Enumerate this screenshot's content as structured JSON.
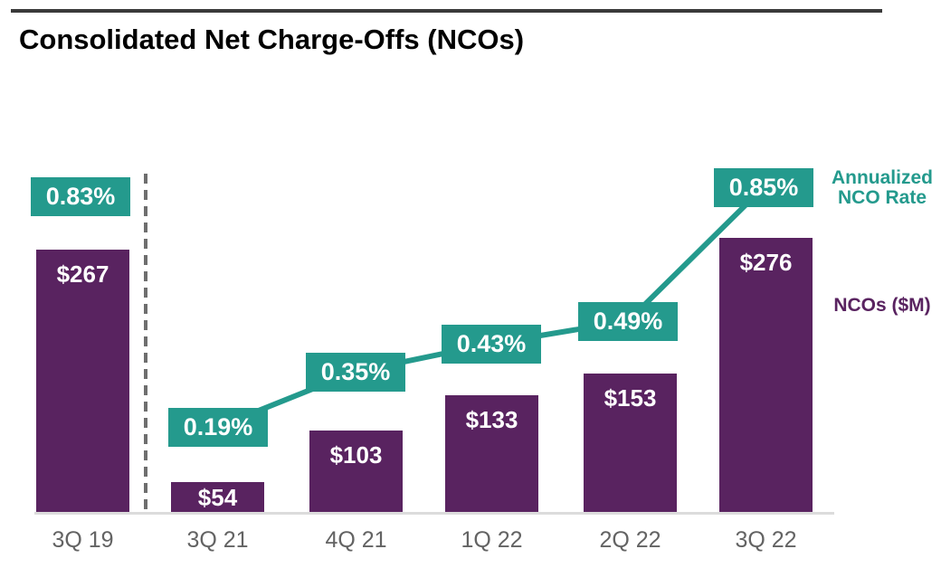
{
  "page": {
    "title": "Consolidated Net Charge-Offs (NCOs)"
  },
  "legend": {
    "rate_line1": "Annualized",
    "rate_line2": "NCO Rate",
    "nco_label": "NCOs ($M)"
  },
  "colors": {
    "bar_purple": "#592360",
    "rate_teal": "#249a8d",
    "axis_label_gray": "#636363",
    "baseline_gray": "#dcdcdc",
    "separator_gray": "#6e6e6e",
    "top_rule_dark": "#3a3a3a",
    "title_black": "#000000",
    "data_label_white": "#ffffff"
  },
  "chart_data": {
    "type": "bar",
    "subtype": "bar-line-combo",
    "title": "Consolidated Net Charge-Offs (NCOs)",
    "categories": [
      "3Q 19",
      "3Q 21",
      "4Q 21",
      "1Q 22",
      "2Q 22",
      "3Q 22"
    ],
    "series": [
      {
        "name": "NCOs ($M)",
        "type": "bar",
        "values": [
          267,
          54,
          103,
          133,
          153,
          276
        ],
        "labels": [
          "$267",
          "$54",
          "$103",
          "$133",
          "$153",
          "$276"
        ]
      },
      {
        "name": "Annualized NCO Rate",
        "type": "line",
        "values": [
          0.83,
          0.19,
          0.35,
          0.43,
          0.49,
          0.85
        ],
        "labels": [
          "0.83%",
          "0.19%",
          "0.35%",
          "0.43%",
          "0.49%",
          "0.85%"
        ]
      }
    ],
    "annotations": {
      "separator": "dashed vertical divider between 3Q 19 and 3Q 21",
      "line_connectivity": "rate line connects 3Q 21 through 3Q 22 only; 3Q 19 point is isolated"
    },
    "legend_position": "right",
    "grid": false,
    "y_axis_visible": false
  }
}
